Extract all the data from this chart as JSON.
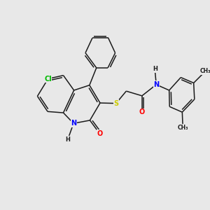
{
  "background_color": "#e8e8e8",
  "bond_color": "#1a1a1a",
  "atom_colors": {
    "Cl": "#00bb00",
    "S": "#cccc00",
    "O": "#ff0000",
    "N": "#0000ff",
    "H": "#1a1a1a",
    "C": "#1a1a1a"
  },
  "lw": 1.1,
  "dbl_off": 0.09,
  "dbl_shrink": 0.1
}
